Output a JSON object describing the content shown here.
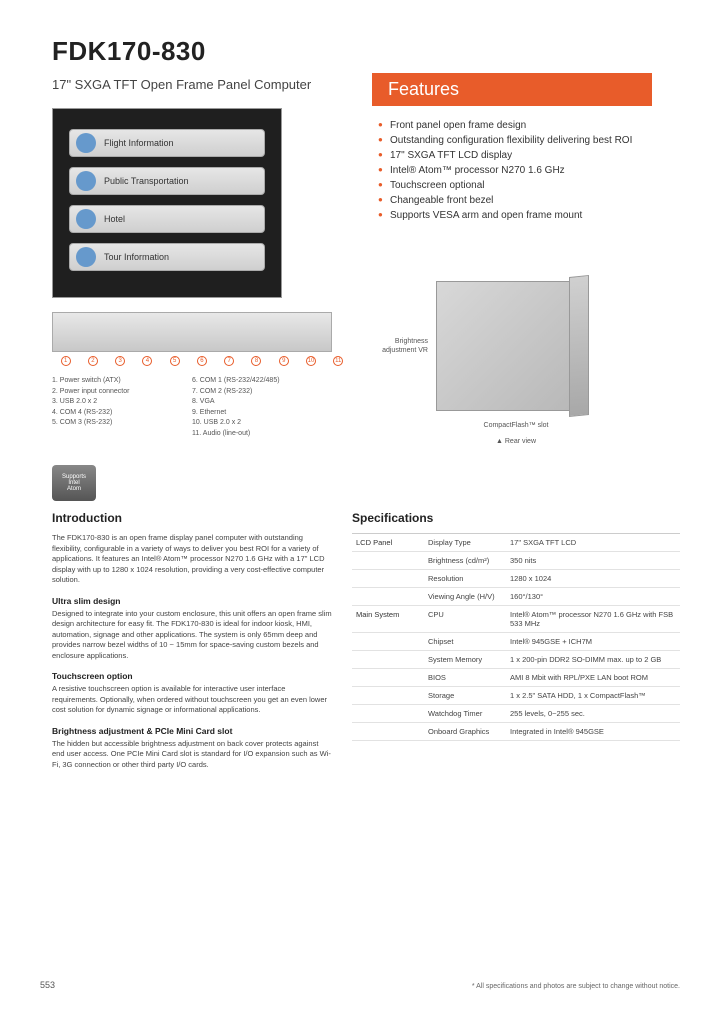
{
  "header": {
    "title": "FDK170-830",
    "subtitle": "17\" SXGA TFT Open Frame Panel Computer"
  },
  "features": {
    "heading": "Features",
    "bg_color": "#e85c2a",
    "items": [
      "Front panel open frame design",
      "Outstanding configuration flexibility delivering best ROI",
      "17\" SXGA TFT LCD display",
      "Intel® Atom™ processor N270 1.6 GHz",
      "Touchscreen optional",
      "Changeable front bezel",
      "Supports VESA arm and open frame mount"
    ]
  },
  "kiosk_menu": [
    "Flight Information",
    "Public Transportation",
    "Hotel",
    "Tour Information"
  ],
  "ports": {
    "col1": [
      "1. Power switch (ATX)",
      "2. Power input connector",
      "3. USB 2.0 x 2",
      "4. COM 4 (RS-232)",
      "5. COM 3 (RS-232)"
    ],
    "col2": [
      "6. COM 1 (RS-232/422/485)",
      "7. COM 2 (RS-232)",
      "8. VGA",
      "9. Ethernet",
      "10. USB 2.0 x 2",
      "11. Audio (line-out)"
    ]
  },
  "rear_annotations": {
    "left": "Brightness adjustment VR",
    "bottom": "CompactFlash™ slot",
    "caption": "▲ Rear view"
  },
  "badge": {
    "top": "Supports",
    "mid": "Intel",
    "bot": "Atom"
  },
  "intro": {
    "heading": "Introduction",
    "p1": "The FDK170-830 is an open frame display panel computer with outstanding flexibility, configurable in a variety of ways to deliver you best ROI for a variety of applications. It features an Intel® Atom™ processor N270 1.6 GHz with a 17\" LCD display with up to 1280 x 1024 resolution, providing a very cost-effective computer solution.",
    "h2": "Ultra slim design",
    "p2": "Designed to integrate into your custom enclosure, this unit offers an open frame slim design architecture for easy fit. The FDK170-830 is ideal for indoor kiosk, HMI, automation, signage and other applications. The system is only 65mm deep and provides narrow bezel widths of 10 ~ 15mm for space-saving custom bezels and enclosure applications.",
    "h3": "Touchscreen option",
    "p3": "A resistive touchscreen option is available for interactive user interface requirements. Optionally, when ordered without touchscreen you get an even lower cost solution for dynamic signage or informational applications.",
    "h4": "Brightness adjustment & PCIe Mini Card slot",
    "p4": "The hidden but accessible brightness adjustment on back cover protects against end user access. One PCIe Mini Card slot is standard for I/O expansion such as Wi-Fi, 3G connection or other third party I/O cards."
  },
  "specs": {
    "heading": "Specifications",
    "rows": [
      {
        "g": "LCD Panel",
        "k": "Display Type",
        "v": "17\" SXGA TFT LCD"
      },
      {
        "g": "",
        "k": "Brightness (cd/m²)",
        "v": "350 nits"
      },
      {
        "g": "",
        "k": "Resolution",
        "v": "1280 x 1024"
      },
      {
        "g": "",
        "k": "Viewing Angle (H/V)",
        "v": "160°/130°"
      },
      {
        "g": "Main System",
        "k": "CPU",
        "v": "Intel® Atom™ processor N270 1.6 GHz with FSB 533 MHz"
      },
      {
        "g": "",
        "k": "Chipset",
        "v": "Intel® 945GSE + ICH7M"
      },
      {
        "g": "",
        "k": "System Memory",
        "v": "1 x 200-pin DDR2 SO-DIMM max. up to 2 GB"
      },
      {
        "g": "",
        "k": "BIOS",
        "v": "AMI 8 Mbit with RPL/PXE LAN boot ROM"
      },
      {
        "g": "",
        "k": "Storage",
        "v": "1 x 2.5\" SATA HDD, 1 x CompactFlash™"
      },
      {
        "g": "",
        "k": "Watchdog Timer",
        "v": "255 levels, 0~255 sec."
      },
      {
        "g": "",
        "k": "Onboard Graphics",
        "v": "Integrated in Intel® 945GSE"
      }
    ]
  },
  "page_number": "553",
  "footnote": "* All specifications and photos are subject to change without notice."
}
